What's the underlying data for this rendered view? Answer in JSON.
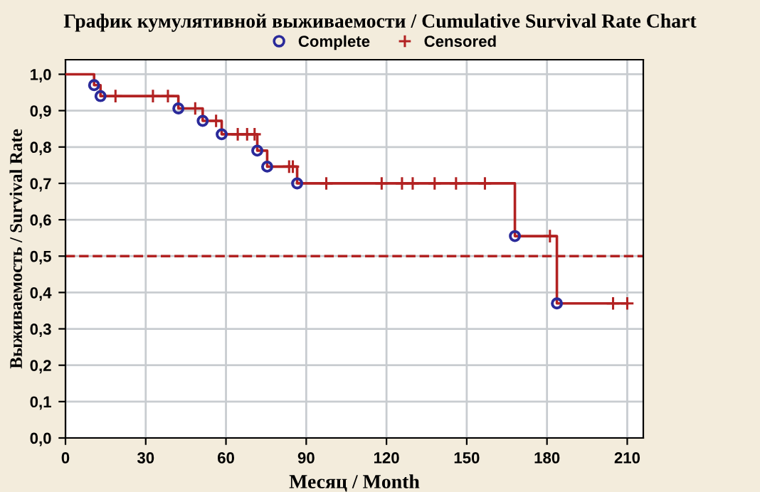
{
  "chart_data": {
    "type": "step",
    "title": "График кумулятивной выживаемости / Cumulative Survival Rate Chart",
    "xlabel": "Месяц / Month",
    "ylabel": "Выживаемость / Survival Rate",
    "series": [
      {
        "color": "#b22222",
        "x": [
          0,
          10.7,
          13.1,
          42.2,
          51.3,
          58.4,
          71.7,
          75.4,
          86.6,
          168,
          183.7,
          210
        ],
        "values": [
          1.0,
          0.97,
          0.94,
          0.906,
          0.872,
          0.835,
          0.79,
          0.746,
          0.7,
          0.555,
          0.37,
          0.37
        ],
        "marker": "none"
      },
      {
        "type": "scatter",
        "name": "Complete",
        "color": "#2a2a9a",
        "marker": "circle",
        "x": [
          10.7,
          13.1,
          42.2,
          51.3,
          58.4,
          71.7,
          75.4,
          86.6,
          168,
          183.7
        ],
        "values": [
          0.97,
          0.94,
          0.906,
          0.872,
          0.835,
          0.79,
          0.746,
          0.7,
          0.555,
          0.37
        ]
      },
      {
        "type": "scatter",
        "name": "Censored",
        "color": "#b22222",
        "marker": "cross",
        "x": [
          18.7,
          32.7,
          38.3,
          48.5,
          56.3,
          64.4,
          67.9,
          70.7,
          83.6,
          85.0,
          97.5,
          118.2,
          125.8,
          129.8,
          138,
          146,
          156.8,
          181.1,
          204.7,
          210
        ],
        "values": [
          0.94,
          0.94,
          0.94,
          0.906,
          0.872,
          0.835,
          0.835,
          0.835,
          0.746,
          0.746,
          0.7,
          0.7,
          0.7,
          0.7,
          0.7,
          0.7,
          0.7,
          0.555,
          0.37,
          0.37
        ]
      }
    ],
    "xlim": [
      0,
      216
    ],
    "xticks": [
      0,
      30,
      60,
      90,
      120,
      150,
      180,
      210
    ],
    "ylim": [
      0,
      1.04
    ],
    "yticks": [
      {
        "value": 0,
        "label": "0,0"
      },
      {
        "value": 0.1,
        "label": "0,1"
      },
      {
        "value": 0.2,
        "label": "0,2"
      },
      {
        "value": 0.3,
        "label": "0,3"
      },
      {
        "value": 0.4,
        "label": "0,4"
      },
      {
        "value": 0.5,
        "label": "0,5"
      },
      {
        "value": 0.6,
        "label": "0,6"
      },
      {
        "value": 0.7,
        "label": "0,7"
      },
      {
        "value": 0.8,
        "label": "0,8"
      },
      {
        "value": 0.9,
        "label": "0,9"
      },
      {
        "value": 1.0,
        "label": "1,0"
      }
    ],
    "ref_lines": [
      {
        "axis": "y",
        "value": 0.5,
        "color": "#b22222",
        "line_style": "dashed"
      }
    ],
    "grid": true,
    "legend": "top"
  }
}
